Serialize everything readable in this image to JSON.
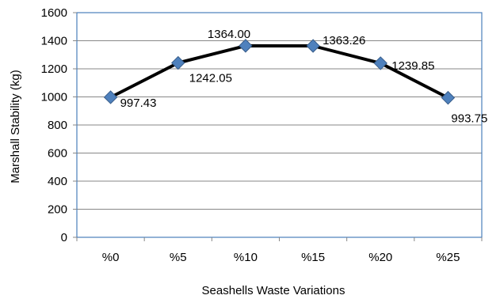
{
  "chart_data": {
    "type": "line",
    "categories": [
      "%0",
      "%5",
      "%10",
      "%15",
      "%20",
      "%25"
    ],
    "values": [
      997.43,
      1242.05,
      1364.0,
      1363.26,
      1239.85,
      993.75
    ],
    "data_labels": [
      "997.43",
      "1242.05",
      "1364.00",
      "1363.26",
      "1239.85",
      "993.75"
    ],
    "title": "",
    "xlabel": "Seashells Waste Variations",
    "ylabel": "Marshall Stability (kg)",
    "ylim": [
      0,
      1600
    ],
    "yticks": [
      0,
      200,
      400,
      600,
      800,
      1000,
      1200,
      1400,
      1600
    ],
    "grid": true,
    "legend": "none",
    "colors": {
      "line": "#000000",
      "marker": "#4F81BD",
      "marker_edge": "#385D8A",
      "grid": "#878787",
      "frame": "#4A7EBB"
    }
  }
}
